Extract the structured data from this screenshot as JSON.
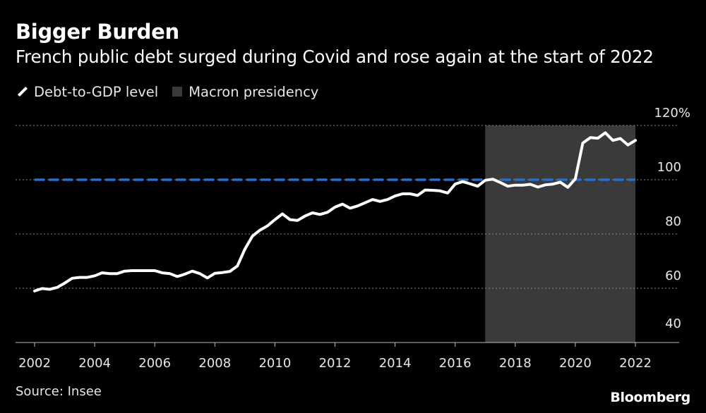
{
  "title": "Bigger Burden",
  "subtitle": "French public debt surged during Covid and rose again at the start of 2022",
  "legend": {
    "series_label": "Debt-to-GDP level",
    "shade_label": "Macron presidency"
  },
  "source": "Source: Insee",
  "brand": "Bloomberg",
  "colors": {
    "line": "#ffffff",
    "shade": "#3a3a3a",
    "reference": "#1f6fdb",
    "grid": "#8a8a8a"
  },
  "chart_data": {
    "type": "line",
    "title": "Bigger Burden",
    "xlabel": "",
    "ylabel": "",
    "xlim": [
      2002,
      2022
    ],
    "ylim": [
      40,
      120
    ],
    "y_unit_suffix": "%",
    "x_ticks": [
      "2002",
      "2004",
      "2006",
      "2008",
      "2010",
      "2012",
      "2014",
      "2016",
      "2018",
      "2020",
      "2022"
    ],
    "y_ticks": [
      {
        "value": 40,
        "label": "40"
      },
      {
        "value": 60,
        "label": "60"
      },
      {
        "value": 80,
        "label": "80"
      },
      {
        "value": 100,
        "label": "100"
      },
      {
        "value": 120,
        "label": "120%"
      }
    ],
    "grid": true,
    "shaded_region": {
      "label": "Macron presidency",
      "x_start": 2017.0,
      "x_end": 2022.0
    },
    "reference_line": {
      "y": 100,
      "style": "dashed"
    },
    "series": [
      {
        "name": "Debt-to-GDP level",
        "x": [
          2002.0,
          2002.25,
          2002.5,
          2002.75,
          2003.0,
          2003.25,
          2003.5,
          2003.75,
          2004.0,
          2004.25,
          2004.5,
          2004.75,
          2005.0,
          2005.25,
          2005.5,
          2005.75,
          2006.0,
          2006.25,
          2006.5,
          2006.75,
          2007.0,
          2007.25,
          2007.5,
          2007.75,
          2008.0,
          2008.25,
          2008.5,
          2008.75,
          2009.0,
          2009.25,
          2009.5,
          2009.75,
          2010.0,
          2010.25,
          2010.5,
          2010.75,
          2011.0,
          2011.25,
          2011.5,
          2011.75,
          2012.0,
          2012.25,
          2012.5,
          2012.75,
          2013.0,
          2013.25,
          2013.5,
          2013.75,
          2014.0,
          2014.25,
          2014.5,
          2014.75,
          2015.0,
          2015.25,
          2015.5,
          2015.75,
          2016.0,
          2016.25,
          2016.5,
          2016.75,
          2017.0,
          2017.25,
          2017.5,
          2017.75,
          2018.0,
          2018.25,
          2018.5,
          2018.75,
          2019.0,
          2019.25,
          2019.5,
          2019.75,
          2020.0,
          2020.25,
          2020.5,
          2020.75,
          2021.0,
          2021.25,
          2021.5,
          2021.75,
          2022.0
        ],
        "values": [
          59.0,
          59.9,
          59.6,
          60.3,
          61.9,
          63.7,
          64.0,
          64.0,
          64.6,
          65.7,
          65.4,
          65.4,
          66.3,
          66.5,
          66.5,
          66.5,
          66.5,
          65.7,
          65.4,
          64.3,
          65.2,
          66.3,
          65.4,
          63.8,
          65.5,
          65.8,
          66.2,
          68.2,
          74.4,
          79.2,
          81.4,
          83.0,
          85.3,
          87.4,
          85.3,
          85.0,
          86.6,
          87.8,
          87.2,
          88.0,
          89.9,
          91.0,
          89.5,
          90.3,
          91.5,
          92.7,
          92.0,
          92.7,
          94.0,
          94.8,
          94.8,
          94.2,
          96.2,
          96.1,
          95.9,
          95.1,
          98.4,
          99.3,
          98.5,
          97.6,
          99.8,
          100.2,
          99.0,
          97.6,
          98.0,
          98.0,
          98.3,
          97.3,
          98.1,
          98.4,
          99.1,
          97.2,
          100.3,
          113.5,
          115.5,
          115.3,
          117.3,
          114.5,
          115.2,
          112.8,
          114.5
        ]
      }
    ]
  }
}
